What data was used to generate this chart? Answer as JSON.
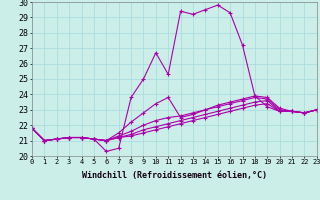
{
  "xlabel": "Windchill (Refroidissement éolien,°C)",
  "x_ticks": [
    0,
    1,
    2,
    3,
    4,
    5,
    6,
    7,
    8,
    9,
    10,
    11,
    12,
    13,
    14,
    15,
    16,
    17,
    18,
    19,
    20,
    21,
    22,
    23
  ],
  "ylim": [
    20,
    30
  ],
  "yticks": [
    20,
    21,
    22,
    23,
    24,
    25,
    26,
    27,
    28,
    29,
    30
  ],
  "background_color": "#cceee8",
  "grid_color": "#aadddd",
  "line_color": "#aa00aa",
  "lines": [
    [
      21.8,
      21.0,
      21.1,
      21.2,
      21.2,
      21.1,
      20.3,
      20.5,
      23.8,
      25.0,
      26.7,
      25.3,
      29.4,
      29.2,
      29.5,
      29.8,
      29.3,
      27.2,
      23.9,
      23.2,
      22.9,
      22.9,
      22.8,
      23.0
    ],
    [
      21.8,
      21.0,
      21.1,
      21.2,
      21.2,
      21.1,
      21.0,
      21.5,
      22.2,
      22.8,
      23.4,
      23.8,
      22.5,
      22.7,
      23.0,
      23.3,
      23.5,
      23.7,
      23.9,
      23.8,
      23.1,
      22.9,
      22.8,
      23.0
    ],
    [
      21.8,
      21.0,
      21.1,
      21.2,
      21.2,
      21.1,
      21.0,
      21.3,
      21.6,
      22.0,
      22.3,
      22.5,
      22.6,
      22.8,
      23.0,
      23.2,
      23.4,
      23.6,
      23.8,
      23.7,
      23.0,
      22.9,
      22.8,
      23.0
    ],
    [
      21.8,
      21.0,
      21.1,
      21.2,
      21.2,
      21.1,
      21.0,
      21.2,
      21.4,
      21.7,
      21.9,
      22.1,
      22.3,
      22.5,
      22.7,
      22.9,
      23.1,
      23.3,
      23.5,
      23.6,
      22.9,
      22.9,
      22.8,
      23.0
    ],
    [
      21.8,
      21.0,
      21.1,
      21.2,
      21.2,
      21.1,
      21.0,
      21.2,
      21.3,
      21.5,
      21.7,
      21.9,
      22.1,
      22.3,
      22.5,
      22.7,
      22.9,
      23.1,
      23.3,
      23.4,
      22.9,
      22.9,
      22.8,
      23.0
    ]
  ]
}
